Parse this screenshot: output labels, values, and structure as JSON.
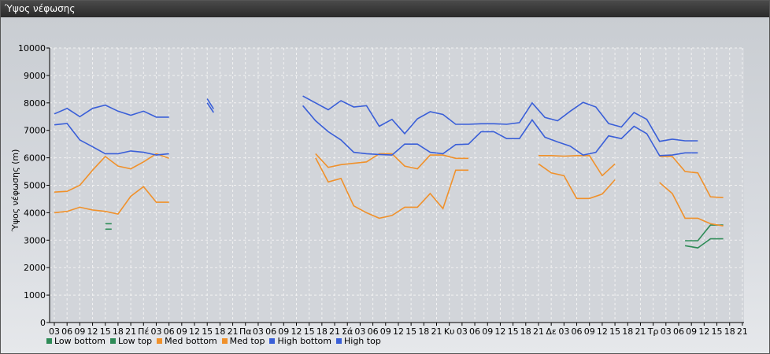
{
  "window": {
    "title": "Ύψος νέφωσης"
  },
  "chart_data": {
    "type": "line",
    "ylabel": "Ύψος νέφωσης (m)",
    "ylim": [
      0,
      10000
    ],
    "yticks": [
      0,
      1000,
      2000,
      3000,
      4000,
      5000,
      6000,
      7000,
      8000,
      9000,
      10000
    ],
    "xlabels": [
      "03",
      "06",
      "09",
      "12",
      "15",
      "18",
      "21",
      "Πέ",
      "03",
      "06",
      "09",
      "12",
      "15",
      "18",
      "21",
      "Πα",
      "03",
      "06",
      "09",
      "12",
      "15",
      "18",
      "21",
      "Σά",
      "03",
      "06",
      "09",
      "12",
      "15",
      "18",
      "21",
      "Κυ",
      "03",
      "06",
      "09",
      "12",
      "15",
      "18",
      "21",
      "Δε",
      "03",
      "06",
      "09",
      "12",
      "15",
      "18",
      "21",
      "Τρ",
      "03",
      "06",
      "09",
      "12",
      "15",
      "18",
      "21"
    ],
    "grid": true,
    "legend_position": "bottom-left",
    "series": [
      {
        "name": "Low bottom",
        "color": "#2e8b57",
        "segments": [
          [
            [
              4,
              3400
            ],
            [
              4.5,
              3400
            ]
          ],
          [
            [
              49.5,
              2800
            ],
            [
              50.5,
              2720
            ],
            [
              51.5,
              3050
            ],
            [
              52.5,
              3050
            ]
          ]
        ]
      },
      {
        "name": "Low top",
        "color": "#2e8b57",
        "segments": [
          [
            [
              4,
              3600
            ],
            [
              4.5,
              3600
            ]
          ],
          [
            [
              49.5,
              2980
            ],
            [
              50.5,
              2980
            ],
            [
              51.5,
              3550
            ],
            [
              52.5,
              3550
            ]
          ]
        ]
      },
      {
        "name": "Med bottom",
        "color": "#f0912b",
        "segments": [
          [
            [
              0,
              4000
            ],
            [
              1,
              4050
            ],
            [
              2,
              4200
            ],
            [
              3,
              4100
            ],
            [
              4,
              4050
            ],
            [
              5,
              3950
            ],
            [
              6,
              4600
            ],
            [
              7,
              4950
            ],
            [
              8,
              4380
            ],
            [
              9,
              4380
            ]
          ],
          [
            [
              20.5,
              6000
            ],
            [
              21.5,
              5120
            ],
            [
              22.5,
              5250
            ],
            [
              23.5,
              4250
            ],
            [
              24.5,
              4000
            ],
            [
              25.5,
              3800
            ],
            [
              26.5,
              3900
            ],
            [
              27.5,
              4200
            ],
            [
              28.5,
              4200
            ],
            [
              29.5,
              4700
            ],
            [
              30.5,
              4150
            ],
            [
              31.5,
              5550
            ],
            [
              32.5,
              5550
            ]
          ],
          [
            [
              38,
              5780
            ],
            [
              39,
              5450
            ],
            [
              40,
              5350
            ],
            [
              41,
              4520
            ],
            [
              42,
              4520
            ],
            [
              43,
              4680
            ],
            [
              44,
              5200
            ]
          ],
          [
            [
              47.5,
              5100
            ],
            [
              48.5,
              4700
            ],
            [
              49.5,
              3800
            ],
            [
              50.5,
              3800
            ],
            [
              51.5,
              3600
            ],
            [
              52.5,
              3520
            ]
          ]
        ]
      },
      {
        "name": "Med top",
        "color": "#f0912b",
        "segments": [
          [
            [
              0,
              4750
            ],
            [
              1,
              4780
            ],
            [
              2,
              5000
            ],
            [
              3,
              5550
            ],
            [
              4,
              6050
            ],
            [
              5,
              5700
            ],
            [
              6,
              5600
            ],
            [
              7,
              5850
            ],
            [
              8,
              6150
            ],
            [
              9,
              5980
            ]
          ],
          [
            [
              20.5,
              6150
            ],
            [
              21.5,
              5650
            ],
            [
              22.5,
              5750
            ],
            [
              23.5,
              5800
            ],
            [
              24.5,
              5850
            ],
            [
              25.5,
              6150
            ],
            [
              26.5,
              6150
            ],
            [
              27.5,
              5700
            ],
            [
              28.5,
              5600
            ],
            [
              29.5,
              6100
            ],
            [
              30.5,
              6100
            ],
            [
              31.5,
              5980
            ],
            [
              32.5,
              5980
            ]
          ],
          [
            [
              38,
              6080
            ],
            [
              39,
              6080
            ],
            [
              40,
              6060
            ],
            [
              41,
              6080
            ],
            [
              42,
              6080
            ],
            [
              43,
              5350
            ],
            [
              44,
              5780
            ]
          ],
          [
            [
              47.5,
              6050
            ],
            [
              48.5,
              6050
            ],
            [
              49.5,
              5500
            ],
            [
              50.5,
              5450
            ],
            [
              51.5,
              4580
            ],
            [
              52.5,
              4550
            ]
          ]
        ]
      },
      {
        "name": "High bottom",
        "color": "#3a5fd8",
        "segments": [
          [
            [
              0,
              7200
            ],
            [
              1,
              7250
            ],
            [
              2,
              6650
            ],
            [
              3,
              6400
            ],
            [
              4,
              6150
            ],
            [
              5,
              6150
            ],
            [
              6,
              6250
            ],
            [
              7,
              6200
            ],
            [
              8,
              6100
            ],
            [
              9,
              6150
            ]
          ],
          [
            [
              12,
              8000
            ],
            [
              12.5,
              7650
            ]
          ],
          [
            [
              19.5,
              7900
            ],
            [
              20.5,
              7350
            ],
            [
              21.5,
              6950
            ],
            [
              22.5,
              6650
            ],
            [
              23.5,
              6200
            ],
            [
              24.5,
              6150
            ],
            [
              25.5,
              6120
            ],
            [
              26.5,
              6100
            ],
            [
              27.5,
              6500
            ],
            [
              28.5,
              6500
            ],
            [
              29.5,
              6200
            ],
            [
              30.5,
              6150
            ],
            [
              31.5,
              6480
            ],
            [
              32.5,
              6500
            ],
            [
              33.5,
              6950
            ],
            [
              34.5,
              6950
            ],
            [
              35.5,
              6700
            ],
            [
              36.5,
              6700
            ],
            [
              37.5,
              7380
            ],
            [
              38.5,
              6750
            ],
            [
              39.5,
              6580
            ],
            [
              40.5,
              6420
            ],
            [
              41.5,
              6100
            ],
            [
              42.5,
              6200
            ],
            [
              43.5,
              6800
            ],
            [
              44.5,
              6700
            ],
            [
              45.5,
              7150
            ],
            [
              46.5,
              6880
            ],
            [
              47.5,
              6080
            ],
            [
              48.5,
              6100
            ],
            [
              49.5,
              6180
            ],
            [
              50.5,
              6180
            ]
          ]
        ]
      },
      {
        "name": "High top",
        "color": "#3a5fd8",
        "segments": [
          [
            [
              0,
              7600
            ],
            [
              1,
              7800
            ],
            [
              2,
              7500
            ],
            [
              3,
              7800
            ],
            [
              4,
              7920
            ],
            [
              5,
              7700
            ],
            [
              6,
              7550
            ],
            [
              7,
              7700
            ],
            [
              8,
              7480
            ],
            [
              9,
              7480
            ]
          ],
          [
            [
              12,
              8150
            ],
            [
              12.5,
              7780
            ]
          ],
          [
            [
              19.5,
              8250
            ],
            [
              20.5,
              8000
            ],
            [
              21.5,
              7750
            ],
            [
              22.5,
              8080
            ],
            [
              23.5,
              7850
            ],
            [
              24.5,
              7900
            ],
            [
              25.5,
              7150
            ],
            [
              26.5,
              7400
            ],
            [
              27.5,
              6880
            ],
            [
              28.5,
              7420
            ],
            [
              29.5,
              7680
            ],
            [
              30.5,
              7580
            ],
            [
              31.5,
              7220
            ],
            [
              32.5,
              7220
            ],
            [
              33.5,
              7240
            ],
            [
              34.5,
              7240
            ],
            [
              35.5,
              7220
            ],
            [
              36.5,
              7280
            ],
            [
              37.5,
              8000
            ],
            [
              38.5,
              7470
            ],
            [
              39.5,
              7350
            ],
            [
              40.5,
              7700
            ],
            [
              41.5,
              8020
            ],
            [
              42.5,
              7850
            ],
            [
              43.5,
              7250
            ],
            [
              44.5,
              7120
            ],
            [
              45.5,
              7650
            ],
            [
              46.5,
              7400
            ],
            [
              47.5,
              6600
            ],
            [
              48.5,
              6680
            ],
            [
              49.5,
              6620
            ],
            [
              50.5,
              6620
            ]
          ]
        ]
      }
    ]
  }
}
